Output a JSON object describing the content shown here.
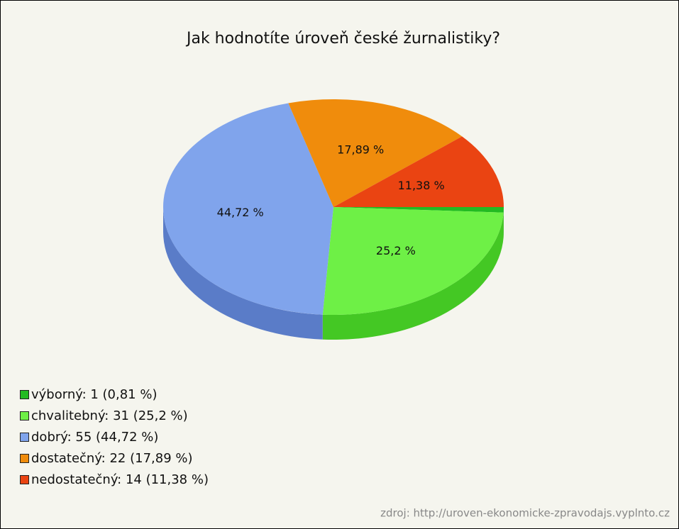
{
  "chart_data": {
    "type": "pie",
    "title": "Jak hodnotíte úroveň české žurnalistiky?",
    "categories": [
      "výborný",
      "chvalitebný",
      "dobrý",
      "dostatečný",
      "nedostatečný"
    ],
    "counts": [
      1,
      31,
      55,
      22,
      14
    ],
    "values": [
      0.81,
      25.2,
      44.72,
      17.89,
      11.38
    ],
    "value_labels": [
      null,
      "25,2 %",
      "44,72 %",
      "17,89 %",
      "11,38 %"
    ],
    "legend_labels": [
      "výborný: 1 (0,81 %)",
      "chvalitebný: 31 (25,2 %)",
      "dobrý: 55 (44,72 %)",
      "dostatečný: 22 (17,89 %)",
      "nedostatečný: 14 (11,38 %)"
    ],
    "colors": [
      "#22bb22",
      "#6ef046",
      "#80a4ec",
      "#f08c0c",
      "#ea4412"
    ],
    "side_colors": [
      "#189018",
      "#44c824",
      "#5a7cc8",
      "#c86c00",
      "#b83008"
    ],
    "source": "zdroj: http://uroven-ekonomicke-zpravodajs.vyplnto.cz"
  }
}
